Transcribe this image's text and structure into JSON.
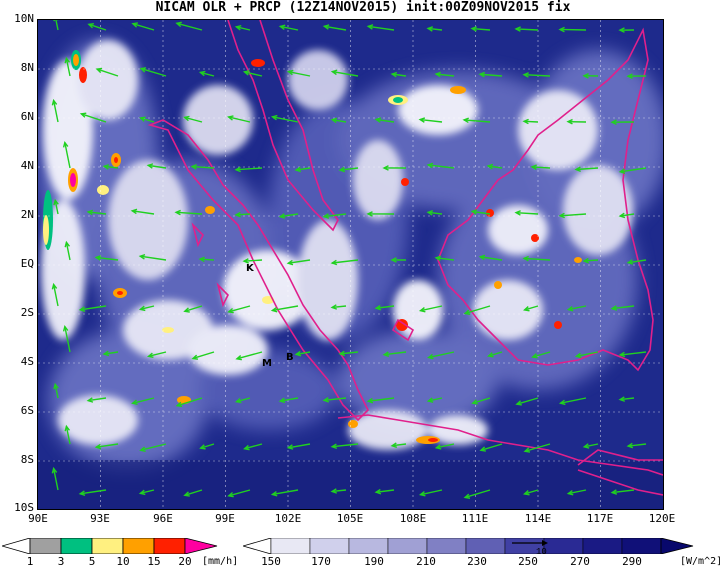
{
  "title": "NICAM OLR + PRCP (12Z14NOV2015) init:00Z09NOV2015 fix",
  "lat_labels": [
    "10N",
    "8N",
    "6N",
    "4N",
    "2N",
    "EQ",
    "2S",
    "4S",
    "6S",
    "8S",
    "10S"
  ],
  "lon_labels": [
    "90E",
    "93E",
    "96E",
    "99E",
    "102E",
    "105E",
    "108E",
    "111E",
    "114E",
    "117E",
    "120E"
  ],
  "places": [
    "K",
    "M",
    "B"
  ],
  "prcp_colorbar": {
    "labels": [
      "1",
      "3",
      "5",
      "10",
      "15",
      "20"
    ],
    "unit": "[mm/h]",
    "colors": [
      "#ffffff",
      "#a0a0a0",
      "#00c080",
      "#fff080",
      "#ffa000",
      "#ff2000",
      "#ff00a0"
    ]
  },
  "olr_colorbar": {
    "labels": [
      "150",
      "170",
      "190",
      "210",
      "230",
      "250",
      "270",
      "290"
    ],
    "unit": "[W/m^2]",
    "colors": [
      "#ffffff",
      "#e8e8f4",
      "#d0d0ec",
      "#b8b8e0",
      "#a0a0d4",
      "#8080c4",
      "#6060b4",
      "#4040a4",
      "#2a2a94",
      "#1a1a84",
      "#101078",
      "#08086c"
    ]
  },
  "reference_vector": "10",
  "colors": {
    "coast": "#e0208c",
    "wind": "#20d020",
    "ocean_clear": "#1a2380"
  }
}
